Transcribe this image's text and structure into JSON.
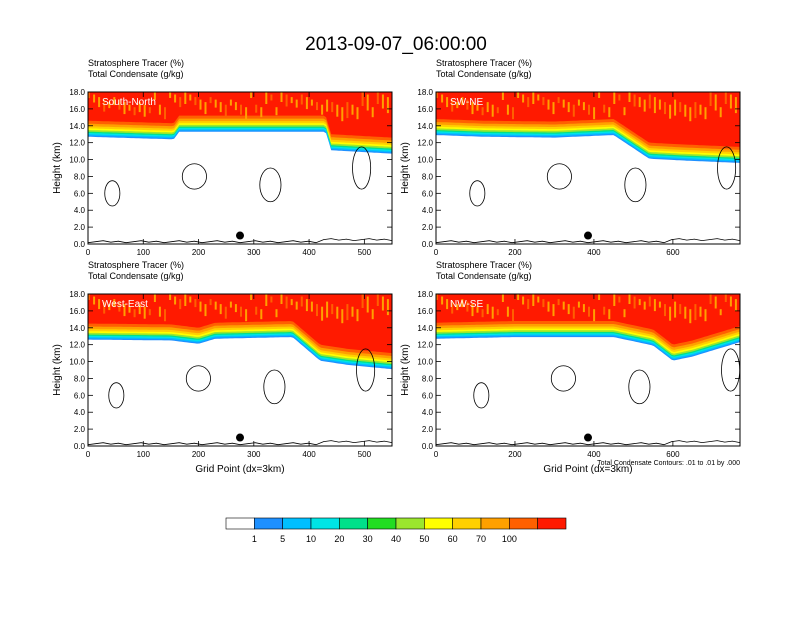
{
  "title": "2013-09-07_06:00:00",
  "chart_data": [
    {
      "type": "heatmap",
      "panel_label": "South-North",
      "title_lines": [
        "Stratosphere Tracer   (%)",
        "Total Condensate   (g/kg)"
      ],
      "xlim": [
        0,
        550
      ],
      "xticks": [
        0,
        100,
        200,
        300,
        400,
        500
      ],
      "ylim": [
        0,
        18
      ],
      "yticks": [
        "0.0",
        "2.0",
        "4.0",
        "6.0",
        "8.0",
        "10.0",
        "12.0",
        "14.0",
        "16.0",
        "18.0"
      ],
      "ylabel": "Height (km)",
      "xlabel": "",
      "marker_x": 275,
      "tropopause_profile": [
        [
          0,
          14.6
        ],
        [
          100,
          14.4
        ],
        [
          155,
          14.3
        ],
        [
          165,
          15.2
        ],
        [
          430,
          15.2
        ],
        [
          440,
          13.0
        ],
        [
          550,
          12.6
        ]
      ]
    },
    {
      "type": "heatmap",
      "panel_label": "SW-NE",
      "title_lines": [
        "Stratosphere Tracer   (%)",
        "Total Condensate   (g/kg)"
      ],
      "xlim": [
        0,
        770
      ],
      "xticks": [
        0,
        200,
        400,
        600
      ],
      "ylim": [
        0,
        18
      ],
      "yticks": [
        "0.0",
        "2.0",
        "4.0",
        "6.0",
        "8.0",
        "10.0",
        "12.0",
        "14.0",
        "16.0",
        "18.0"
      ],
      "ylabel": "Height (km)",
      "xlabel": "",
      "marker_x": 385,
      "tropopause_profile": [
        [
          0,
          14.8
        ],
        [
          120,
          14.6
        ],
        [
          300,
          14.5
        ],
        [
          450,
          14.8
        ],
        [
          540,
          12.0
        ],
        [
          620,
          11.8
        ],
        [
          770,
          11.5
        ]
      ]
    },
    {
      "type": "heatmap",
      "panel_label": "West-East",
      "title_lines": [
        "Stratosphere Tracer   (%)",
        "Total Condensate   (g/kg)"
      ],
      "xlim": [
        0,
        550
      ],
      "xticks": [
        0,
        100,
        200,
        300,
        400,
        500
      ],
      "ylim": [
        0,
        18
      ],
      "yticks": [
        "0.0",
        "2.0",
        "4.0",
        "6.0",
        "8.0",
        "10.0",
        "12.0",
        "14.0",
        "16.0",
        "18.0"
      ],
      "ylabel": "Height (km)",
      "xlabel": "Grid Point (dx=3km)",
      "marker_x": 275,
      "tropopause_profile": [
        [
          0,
          14.5
        ],
        [
          150,
          14.4
        ],
        [
          200,
          14.0
        ],
        [
          230,
          14.6
        ],
        [
          370,
          14.8
        ],
        [
          420,
          12.0
        ],
        [
          470,
          11.5
        ],
        [
          550,
          11.0
        ]
      ]
    },
    {
      "type": "heatmap",
      "panel_label": "NW-SE",
      "title_lines": [
        "Stratosphere Tracer   (%)",
        "Total Condensate   (g/kg)"
      ],
      "xlim": [
        0,
        770
      ],
      "xticks": [
        0,
        200,
        400,
        600
      ],
      "ylim": [
        0,
        18
      ],
      "yticks": [
        "0.0",
        "2.0",
        "4.0",
        "6.0",
        "8.0",
        "10.0",
        "12.0",
        "14.0",
        "16.0",
        "18.0"
      ],
      "ylabel": "Height (km)",
      "xlabel": "Grid Point (dx=3km)",
      "footnote": "Total Condensate Contours: .01 to .01 by .000",
      "marker_x": 385,
      "tropopause_profile": [
        [
          0,
          14.6
        ],
        [
          200,
          14.8
        ],
        [
          450,
          14.8
        ],
        [
          550,
          13.8
        ],
        [
          600,
          12.0
        ],
        [
          650,
          12.5
        ],
        [
          770,
          14.2
        ]
      ]
    }
  ],
  "colorbar": {
    "labels": [
      "1",
      "5",
      "10",
      "20",
      "30",
      "40",
      "50",
      "60",
      "70",
      "100"
    ],
    "colors": [
      "#ffffff",
      "#1e90ff",
      "#00bfff",
      "#00e5e5",
      "#00e08a",
      "#22dd22",
      "#9be62e",
      "#ffff00",
      "#ffd000",
      "#ffa000",
      "#ff6000",
      "#ff1a00"
    ]
  }
}
